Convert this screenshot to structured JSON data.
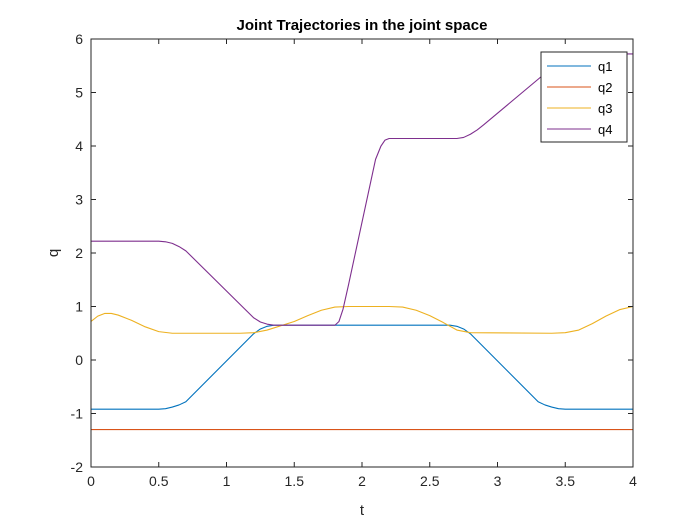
{
  "chart_data": {
    "type": "line",
    "title": "Joint Trajectories in the joint space",
    "xlabel": "t",
    "ylabel": "q",
    "xlim": [
      0,
      4
    ],
    "ylim": [
      -2,
      6
    ],
    "xticks": [
      0,
      0.5,
      1,
      1.5,
      2,
      2.5,
      3,
      3.5,
      4
    ],
    "xtick_labels": [
      "0",
      "0.5",
      "1",
      "1.5",
      "2",
      "2.5",
      "3",
      "3.5",
      "4"
    ],
    "yticks": [
      -2,
      -1,
      0,
      1,
      2,
      3,
      4,
      5,
      6
    ],
    "ytick_labels": [
      "-2",
      "-1",
      "0",
      "1",
      "2",
      "3",
      "4",
      "5",
      "6"
    ],
    "grid": false,
    "legend_position": "top-right",
    "series": [
      {
        "name": "q1",
        "color": "#0072BD",
        "x": [
          0,
          0.5,
          0.55,
          0.6,
          0.65,
          0.7,
          1.2,
          1.25,
          1.3,
          1.35,
          1.4,
          2.6,
          2.65,
          2.7,
          2.75,
          2.8,
          3.3,
          3.35,
          3.4,
          3.45,
          3.5,
          4.0
        ],
        "y": [
          -0.92,
          -0.92,
          -0.91,
          -0.88,
          -0.84,
          -0.78,
          0.49,
          0.58,
          0.63,
          0.65,
          0.65,
          0.65,
          0.65,
          0.63,
          0.58,
          0.49,
          -0.78,
          -0.84,
          -0.88,
          -0.91,
          -0.92,
          -0.92
        ]
      },
      {
        "name": "q2",
        "color": "#D95319",
        "x": [
          0,
          4.0
        ],
        "y": [
          -1.3,
          -1.3
        ]
      },
      {
        "name": "q3",
        "color": "#EDB120",
        "x": [
          0,
          0.05,
          0.1,
          0.15,
          0.2,
          0.3,
          0.4,
          0.5,
          0.6,
          0.7,
          1.1,
          1.2,
          1.3,
          1.5,
          1.6,
          1.7,
          1.8,
          1.9,
          2.1,
          2.2,
          2.3,
          2.4,
          2.5,
          2.6,
          2.7,
          2.8,
          3.4,
          3.5,
          3.6,
          3.7,
          3.8,
          3.9,
          4.0
        ],
        "y": [
          0.72,
          0.82,
          0.87,
          0.87,
          0.84,
          0.74,
          0.62,
          0.53,
          0.5,
          0.5,
          0.5,
          0.51,
          0.56,
          0.72,
          0.83,
          0.93,
          0.99,
          1.0,
          1.0,
          1.0,
          0.99,
          0.93,
          0.83,
          0.7,
          0.56,
          0.51,
          0.5,
          0.51,
          0.56,
          0.68,
          0.82,
          0.94,
          1.0
        ]
      },
      {
        "name": "q4",
        "color": "#7E2F8E",
        "x": [
          0,
          0.5,
          0.55,
          0.6,
          0.65,
          0.7,
          1.2,
          1.25,
          1.3,
          1.35,
          1.8,
          1.83,
          1.86,
          1.9,
          2.1,
          2.14,
          2.17,
          2.2,
          2.7,
          2.75,
          2.8,
          2.85,
          2.9,
          3.4,
          3.45,
          3.5,
          3.55,
          3.6,
          4.0
        ],
        "y": [
          2.22,
          2.22,
          2.21,
          2.18,
          2.12,
          2.04,
          0.79,
          0.71,
          0.67,
          0.65,
          0.65,
          0.72,
          0.95,
          1.4,
          3.75,
          4.0,
          4.11,
          4.14,
          4.14,
          4.16,
          4.22,
          4.3,
          4.4,
          5.46,
          5.56,
          5.64,
          5.7,
          5.72,
          5.72
        ]
      }
    ]
  }
}
